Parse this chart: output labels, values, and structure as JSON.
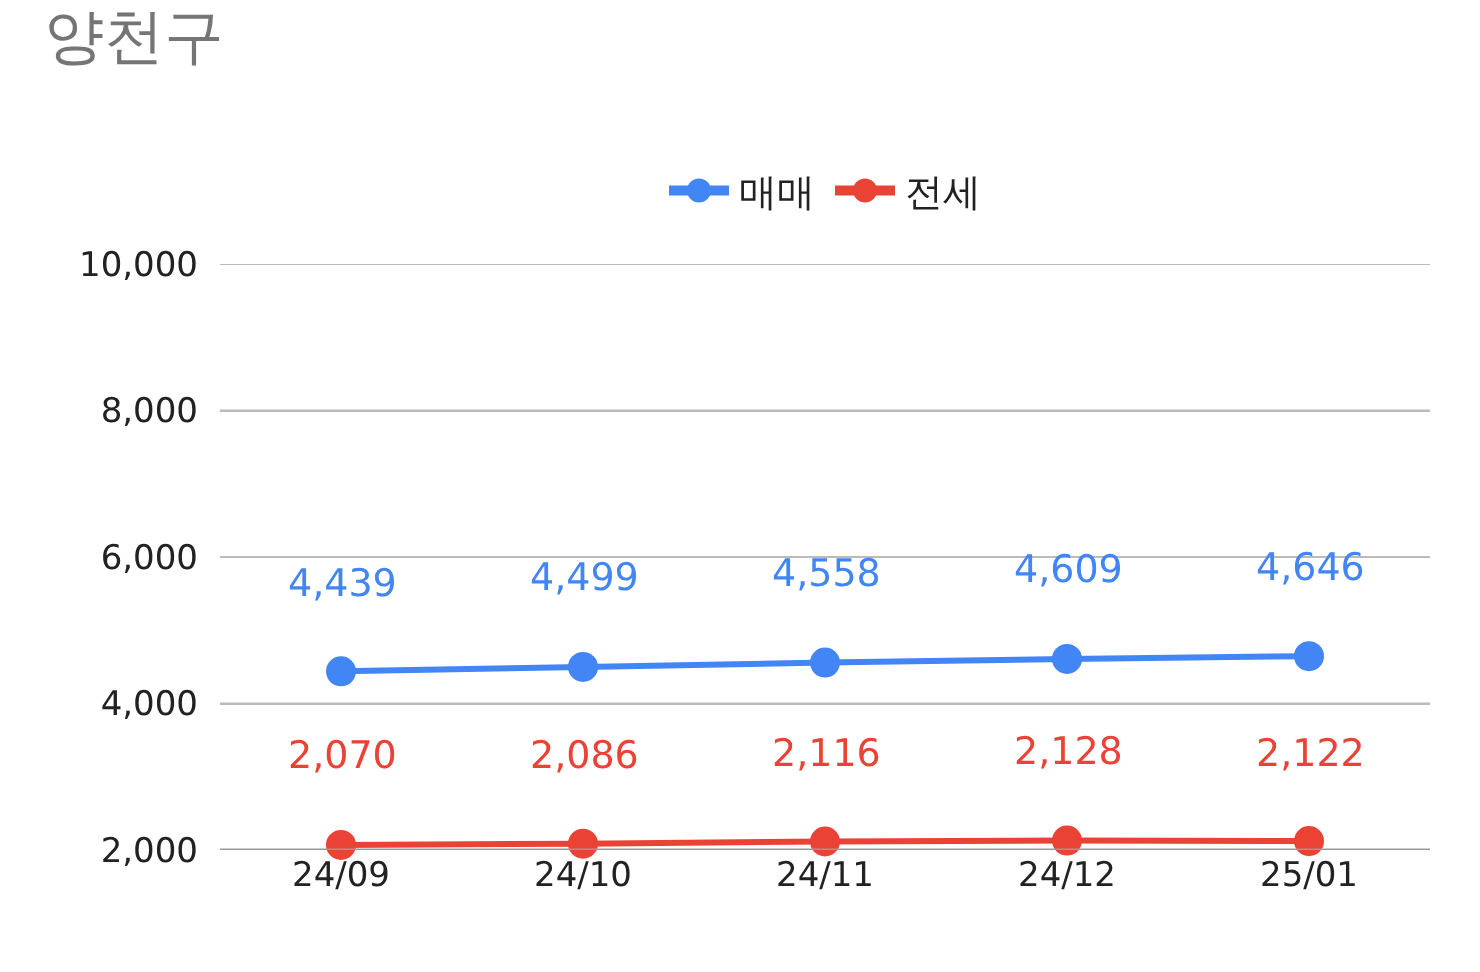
{
  "chart_data": {
    "type": "line",
    "title": "양천구",
    "categories": [
      "24/09",
      "24/10",
      "24/11",
      "24/12",
      "25/01"
    ],
    "series": [
      {
        "name": "매매",
        "color": "#4285f4",
        "values": [
          4439,
          4499,
          4558,
          4609,
          4646
        ],
        "value_labels": [
          "4,439",
          "4,499",
          "4,558",
          "4,609",
          "4,646"
        ]
      },
      {
        "name": "전세",
        "color": "#ea4335",
        "values": [
          2070,
          2086,
          2116,
          2128,
          2122
        ],
        "value_labels": [
          "2,070",
          "2,086",
          "2,116",
          "2,128",
          "2,122"
        ]
      }
    ],
    "ylim": [
      2000,
      10000
    ],
    "yticks": [
      {
        "value": 2000,
        "label": "2,000"
      },
      {
        "value": 4000,
        "label": "4,000"
      },
      {
        "value": 6000,
        "label": "6,000"
      },
      {
        "value": 8000,
        "label": "8,000"
      },
      {
        "value": 10000,
        "label": "10,000"
      }
    ],
    "grid": "y",
    "legend": "top",
    "marker": "circle",
    "line_style": "solid"
  }
}
